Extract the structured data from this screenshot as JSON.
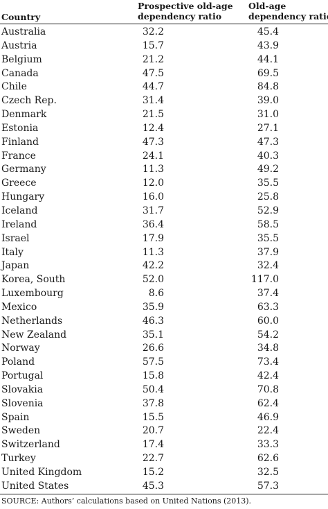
{
  "table": {
    "headers": {
      "country": "Country",
      "prospective_line1": "Prospective old-age",
      "prospective_line2": "dependency ratio",
      "oldage_line1": "Old-age",
      "oldage_line2": "dependency ratio"
    },
    "rows": [
      {
        "country": "Australia",
        "prospective": "32.2",
        "oldage": "45.4"
      },
      {
        "country": "Austria",
        "prospective": "15.7",
        "oldage": "43.9"
      },
      {
        "country": "Belgium",
        "prospective": "21.2",
        "oldage": "44.1"
      },
      {
        "country": "Canada",
        "prospective": "47.5",
        "oldage": "69.5"
      },
      {
        "country": "Chile",
        "prospective": "44.7",
        "oldage": "84.8"
      },
      {
        "country": "Czech Rep.",
        "prospective": "31.4",
        "oldage": "39.0"
      },
      {
        "country": "Denmark",
        "prospective": "21.5",
        "oldage": "31.0"
      },
      {
        "country": "Estonia",
        "prospective": "12.4",
        "oldage": "27.1"
      },
      {
        "country": "Finland",
        "prospective": "47.3",
        "oldage": "47.3"
      },
      {
        "country": "France",
        "prospective": "24.1",
        "oldage": "40.3"
      },
      {
        "country": "Germany",
        "prospective": "11.3",
        "oldage": "49.2"
      },
      {
        "country": "Greece",
        "prospective": "12.0",
        "oldage": "35.5"
      },
      {
        "country": "Hungary",
        "prospective": "16.0",
        "oldage": "25.8"
      },
      {
        "country": "Iceland",
        "prospective": "31.7",
        "oldage": "52.9"
      },
      {
        "country": "Ireland",
        "prospective": "36.4",
        "oldage": "58.5"
      },
      {
        "country": "Israel",
        "prospective": "17.9",
        "oldage": "35.5"
      },
      {
        "country": "Italy",
        "prospective": "11.3",
        "oldage": "37.9"
      },
      {
        "country": "Japan",
        "prospective": "42.2",
        "oldage": "32.4"
      },
      {
        "country": "Korea, South",
        "prospective": "52.0",
        "oldage": "117.0"
      },
      {
        "country": "Luxembourg",
        "prospective": "8.6",
        "oldage": "37.4"
      },
      {
        "country": "Mexico",
        "prospective": "35.9",
        "oldage": "63.3"
      },
      {
        "country": "Netherlands",
        "prospective": "46.3",
        "oldage": "60.0"
      },
      {
        "country": "New Zealand",
        "prospective": "35.1",
        "oldage": "54.2"
      },
      {
        "country": "Norway",
        "prospective": "26.6",
        "oldage": "34.8"
      },
      {
        "country": "Poland",
        "prospective": "57.5",
        "oldage": "73.4"
      },
      {
        "country": "Portugal",
        "prospective": "15.8",
        "oldage": "42.4"
      },
      {
        "country": "Slovakia",
        "prospective": "50.4",
        "oldage": "70.8"
      },
      {
        "country": "Slovenia",
        "prospective": "37.8",
        "oldage": "62.4"
      },
      {
        "country": "Spain",
        "prospective": "15.5",
        "oldage": "46.9"
      },
      {
        "country": "Sweden",
        "prospective": "20.7",
        "oldage": "22.4"
      },
      {
        "country": "Switzerland",
        "prospective": "17.4",
        "oldage": "33.3"
      },
      {
        "country": "Turkey",
        "prospective": "22.7",
        "oldage": "62.6"
      },
      {
        "country": "United Kingdom",
        "prospective": "15.2",
        "oldage": "32.5"
      },
      {
        "country": "United States",
        "prospective": "45.3",
        "oldage": "57.3"
      }
    ]
  },
  "source": "SOURCE: Authors’ calculations based on United Nations (2013)."
}
